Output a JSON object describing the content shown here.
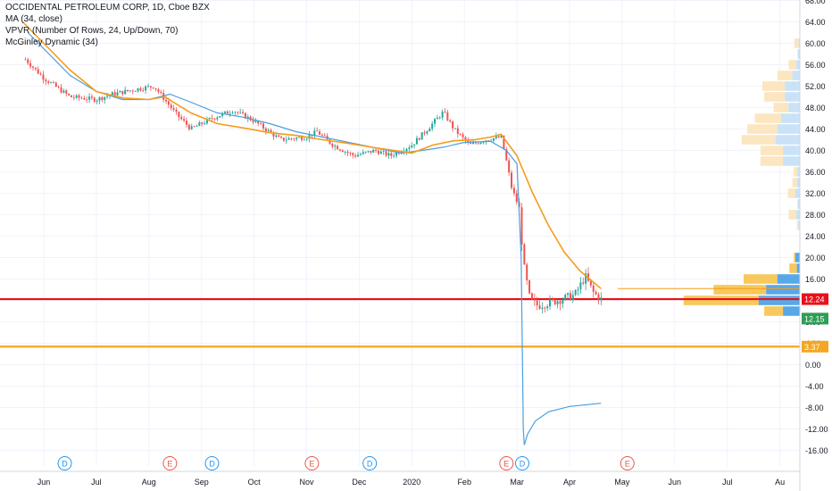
{
  "header": {
    "symbol": "OCCIDENTAL PETROLEUM CORP, 1D, Cboe BZX",
    "indicators": [
      "MA (34, close)",
      "VPVR (Number Of Rows, 24, Up/Down, 70)",
      "McGinley Dynamic (34)"
    ]
  },
  "chart_data": {
    "type": "candlestick",
    "yaxis": {
      "ticks": [
        "68.00",
        "64.00",
        "60.00",
        "56.00",
        "52.00",
        "48.00",
        "44.00",
        "40.00",
        "36.00",
        "32.00",
        "28.00",
        "24.00",
        "20.00",
        "16.00",
        "12.00",
        "8.00",
        "4.00",
        "0.00",
        "-4.00",
        "-8.00",
        "-12.00",
        "-16.00"
      ],
      "range": [
        -18,
        69
      ]
    },
    "xaxis": {
      "ticks": [
        "Jun",
        "Jul",
        "Aug",
        "Sep",
        "Oct",
        "Nov",
        "Dec",
        "2020",
        "Feb",
        "Mar",
        "Apr",
        "May",
        "Jun",
        "Jul",
        "Au"
      ]
    },
    "price_labels": [
      {
        "value": "12.24",
        "color": "#e8101a"
      },
      {
        "value": "12.15",
        "color": "#2e9e55"
      },
      {
        "value": "3.37",
        "color": "#f5a623"
      }
    ],
    "horizontal_lines": [
      {
        "value": 12.24,
        "color": "#e8101a"
      },
      {
        "value": 3.37,
        "color": "#f5a623"
      }
    ],
    "event_markers": [
      {
        "letter": "D",
        "kind": "dividend",
        "color": "#2196f3",
        "date_index": 0.4
      },
      {
        "letter": "E",
        "kind": "earnings",
        "color": "#e8574a",
        "date_index": 2.4
      },
      {
        "letter": "D",
        "kind": "dividend",
        "color": "#2196f3",
        "date_index": 3.2
      },
      {
        "letter": "E",
        "kind": "earnings",
        "color": "#e8574a",
        "date_index": 5.1
      },
      {
        "letter": "D",
        "kind": "dividend",
        "color": "#2196f3",
        "date_index": 6.2
      },
      {
        "letter": "E",
        "kind": "earnings",
        "color": "#e8574a",
        "date_index": 8.8
      },
      {
        "letter": "D",
        "kind": "dividend",
        "color": "#2196f3",
        "date_index": 9.1
      },
      {
        "letter": "E",
        "kind": "earnings",
        "color": "#e8574a",
        "date_index": 11.1
      }
    ],
    "close_path": [
      [
        -0.35,
        57
      ],
      [
        0,
        53.5
      ],
      [
        0.5,
        50
      ],
      [
        1,
        49.5
      ],
      [
        1.3,
        50.5
      ],
      [
        1.8,
        51.5
      ],
      [
        2.1,
        52
      ],
      [
        2.5,
        47
      ],
      [
        2.8,
        44
      ],
      [
        3.2,
        46
      ],
      [
        3.6,
        47.5
      ],
      [
        4,
        45.5
      ],
      [
        4.5,
        42
      ],
      [
        5,
        42.5
      ],
      [
        5.2,
        43.5
      ],
      [
        5.5,
        41
      ],
      [
        5.9,
        39
      ],
      [
        6.3,
        40
      ],
      [
        6.6,
        39
      ],
      [
        6.8,
        40
      ],
      [
        7,
        41
      ],
      [
        7.3,
        44
      ],
      [
        7.6,
        47.2
      ],
      [
        7.8,
        44
      ],
      [
        8.1,
        41
      ],
      [
        8.4,
        42
      ],
      [
        8.7,
        42.5
      ],
      [
        8.8,
        38
      ],
      [
        8.9,
        33
      ],
      [
        9.05,
        29
      ],
      [
        9.12,
        19
      ],
      [
        9.25,
        12
      ],
      [
        9.4,
        11
      ],
      [
        9.7,
        11.8
      ],
      [
        10.1,
        13
      ],
      [
        10.3,
        16.5
      ],
      [
        10.45,
        13.5
      ],
      [
        10.6,
        12.2
      ]
    ],
    "series": [
      {
        "name": "MA (34, close)",
        "color": "#4a9fe0",
        "points": [
          [
            -0.3,
            62
          ],
          [
            0.5,
            54
          ],
          [
            1,
            51
          ],
          [
            1.5,
            49.5
          ],
          [
            2,
            49.5
          ],
          [
            2.4,
            50.5
          ],
          [
            2.8,
            49
          ],
          [
            3.3,
            47
          ],
          [
            3.8,
            46.2
          ],
          [
            4.3,
            45
          ],
          [
            4.8,
            43.5
          ],
          [
            5.3,
            42.5
          ],
          [
            5.8,
            41.5
          ],
          [
            6.3,
            40.5
          ],
          [
            6.8,
            39.5
          ],
          [
            7.2,
            40
          ],
          [
            7.6,
            40.6
          ],
          [
            8,
            41.5
          ],
          [
            8.5,
            41.7
          ],
          [
            8.8,
            40
          ],
          [
            9,
            37.5
          ],
          [
            9.08,
            20
          ],
          [
            9.12,
            -12
          ],
          [
            9.14,
            -15
          ],
          [
            9.2,
            -13
          ],
          [
            9.35,
            -10.5
          ],
          [
            9.6,
            -8.8
          ],
          [
            10,
            -7.8
          ],
          [
            10.6,
            -7.2
          ]
        ]
      },
      {
        "name": "McGinley Dynamic (34)",
        "color": "#f59c1a",
        "points": [
          [
            -0.4,
            64
          ],
          [
            0.5,
            55
          ],
          [
            1,
            51
          ],
          [
            1.5,
            49.8
          ],
          [
            2,
            49.5
          ],
          [
            2.3,
            50
          ],
          [
            2.8,
            47
          ],
          [
            3.3,
            45
          ],
          [
            3.8,
            44.2
          ],
          [
            4.3,
            43.3
          ],
          [
            4.8,
            42.8
          ],
          [
            5.3,
            42
          ],
          [
            5.8,
            41.3
          ],
          [
            6.3,
            40.5
          ],
          [
            6.8,
            39.8
          ],
          [
            7,
            39.5
          ],
          [
            7.4,
            41
          ],
          [
            7.8,
            41.8
          ],
          [
            8.2,
            42
          ],
          [
            8.5,
            42.5
          ],
          [
            8.7,
            43
          ],
          [
            9,
            39
          ],
          [
            9.3,
            32
          ],
          [
            9.6,
            26
          ],
          [
            9.9,
            21
          ],
          [
            10.2,
            17.5
          ],
          [
            10.6,
            14.2
          ]
        ]
      }
    ],
    "volume_profile": {
      "center_x": 872,
      "rows": [
        {
          "price": 60,
          "up": 12,
          "down": 3
        },
        {
          "price": 58,
          "up": 0,
          "down": 6
        },
        {
          "price": 56,
          "up": 20,
          "down": 10
        },
        {
          "price": 54,
          "up": 40,
          "down": 20
        },
        {
          "price": 52,
          "up": 60,
          "down": 40
        },
        {
          "price": 50,
          "up": 55,
          "down": 40
        },
        {
          "price": 48,
          "up": 40,
          "down": 30
        },
        {
          "price": 46,
          "up": 70,
          "down": 50
        },
        {
          "price": 44,
          "up": 80,
          "down": 60
        },
        {
          "price": 42,
          "up": 90,
          "down": 65
        },
        {
          "price": 40,
          "up": 60,
          "down": 45
        },
        {
          "price": 38,
          "up": 60,
          "down": 45
        },
        {
          "price": 36,
          "up": 10,
          "down": 6
        },
        {
          "price": 34,
          "up": 12,
          "down": 8
        },
        {
          "price": 32,
          "up": 20,
          "down": 12
        },
        {
          "price": 30,
          "up": 2,
          "down": 5
        },
        {
          "price": 28,
          "up": 20,
          "down": 10
        },
        {
          "price": 26,
          "up": 4,
          "down": 4
        },
        {
          "price": 20,
          "up": 4,
          "down": 12
        },
        {
          "price": 18,
          "up": 20,
          "down": 8
        },
        {
          "price": 16,
          "up": 90,
          "down": 60
        },
        {
          "price": 14,
          "up": 140,
          "down": 90
        },
        {
          "price": 12,
          "up": 200,
          "down": 110
        },
        {
          "price": 10,
          "up": 50,
          "down": 45
        }
      ]
    }
  }
}
